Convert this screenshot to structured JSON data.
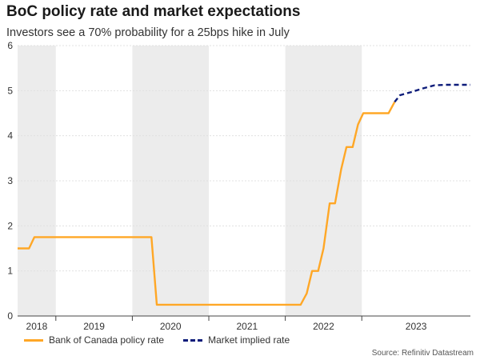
{
  "header": {
    "title": "BoC policy rate and market expectations",
    "subtitle": "Investors see a 70% probability for a 25bps hike in July"
  },
  "footer": {
    "source": "Source: Refinitiv Datastream"
  },
  "colors": {
    "policy_line": "#ffa726",
    "implied_line": "#0d1c7a",
    "shade": "#ececec",
    "grid": "#e0e0e0",
    "axis": "#444444"
  },
  "chart_data": {
    "type": "line",
    "title": "BoC policy rate and market expectations",
    "subtitle": "Investors see a 70% probability for a 25bps hike in July",
    "xlabel": "",
    "ylabel": "",
    "xlim": [
      2018.0,
      2023.92
    ],
    "ylim": [
      0,
      6
    ],
    "yticks": [
      0,
      1,
      2,
      3,
      4,
      5,
      6
    ],
    "year_labels": [
      {
        "label": "2018",
        "start": 2018.0,
        "end": 2018.5
      },
      {
        "label": "2019",
        "start": 2018.5,
        "end": 2019.5
      },
      {
        "label": "2020",
        "start": 2019.5,
        "end": 2020.5
      },
      {
        "label": "2021",
        "start": 2020.5,
        "end": 2021.5
      },
      {
        "label": "2022",
        "start": 2021.5,
        "end": 2022.5
      },
      {
        "label": "2023",
        "start": 2022.5,
        "end": 2023.92
      }
    ],
    "shaded_periods": [
      [
        2018.0,
        2018.5
      ],
      [
        2019.5,
        2020.5
      ],
      [
        2021.5,
        2022.5
      ]
    ],
    "grid": true,
    "legend_position": "bottom",
    "series": [
      {
        "name": "Bank of Canada policy rate",
        "style": "solid",
        "points": [
          [
            2018.0,
            1.5
          ],
          [
            2018.15,
            1.5
          ],
          [
            2018.22,
            1.75
          ],
          [
            2019.75,
            1.75
          ],
          [
            2019.82,
            0.25
          ],
          [
            2021.7,
            0.25
          ],
          [
            2021.78,
            0.5
          ],
          [
            2021.85,
            1.0
          ],
          [
            2021.93,
            1.0
          ],
          [
            2022.0,
            1.5
          ],
          [
            2022.08,
            2.5
          ],
          [
            2022.15,
            2.5
          ],
          [
            2022.23,
            3.25
          ],
          [
            2022.3,
            3.75
          ],
          [
            2022.38,
            3.75
          ],
          [
            2022.45,
            4.25
          ],
          [
            2022.52,
            4.5
          ],
          [
            2022.85,
            4.5
          ],
          [
            2022.93,
            4.75
          ]
        ]
      },
      {
        "name": "Market implied rate",
        "style": "dashed",
        "points": [
          [
            2022.93,
            4.75
          ],
          [
            2023.0,
            4.9
          ],
          [
            2023.15,
            4.97
          ],
          [
            2023.3,
            5.05
          ],
          [
            2023.45,
            5.12
          ],
          [
            2023.6,
            5.13
          ],
          [
            2023.75,
            5.13
          ],
          [
            2023.92,
            5.13
          ]
        ]
      }
    ]
  }
}
